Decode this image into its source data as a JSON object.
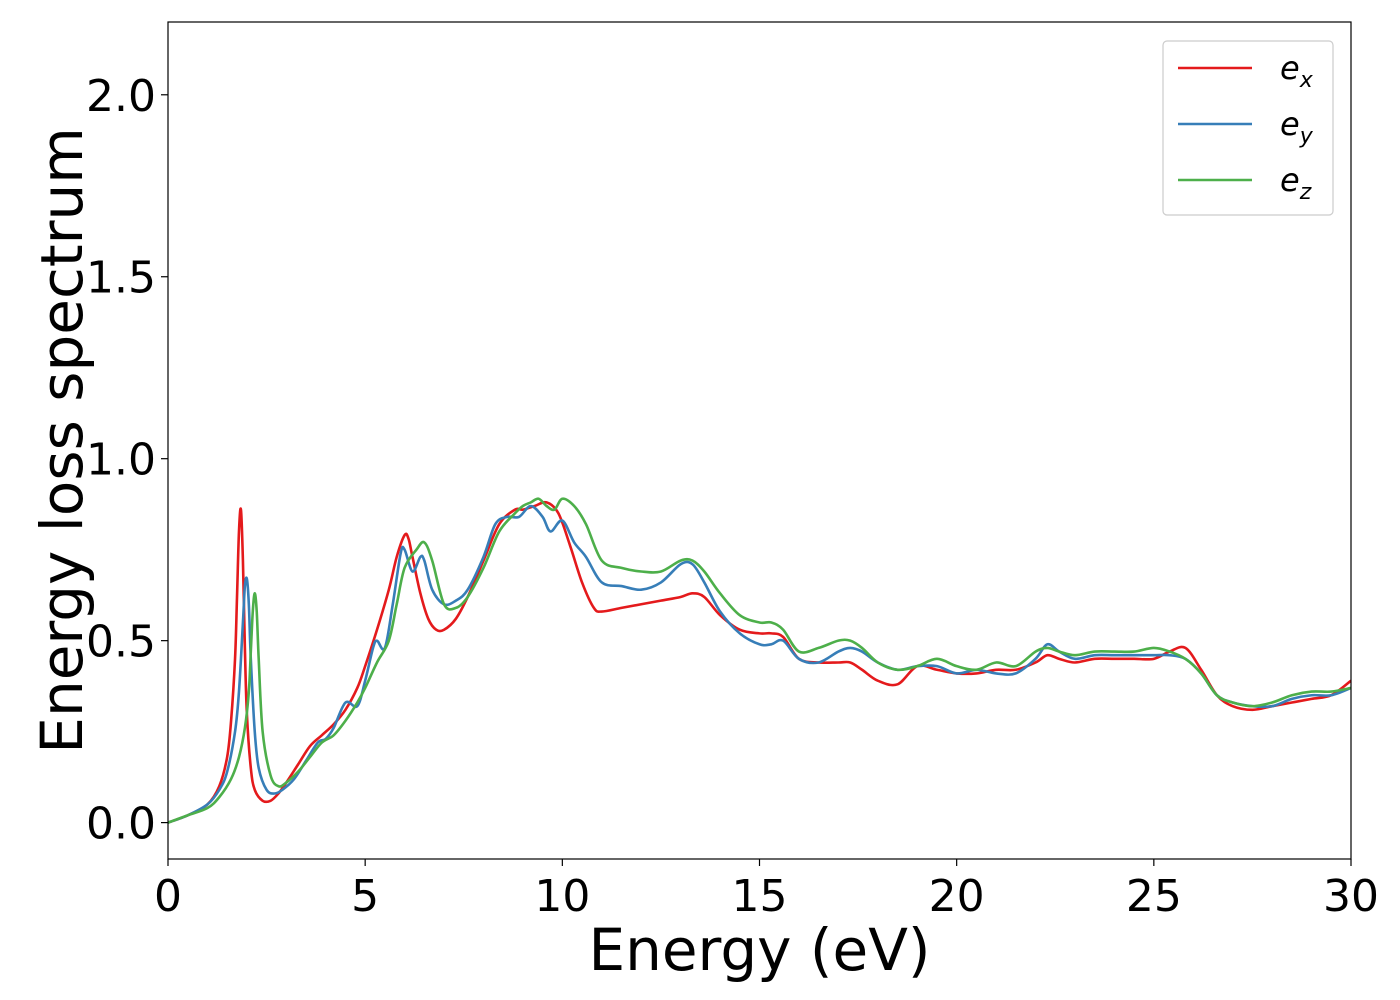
{
  "chart_data": {
    "type": "line",
    "xlabel": "Energy (eV)",
    "ylabel": "Energy loss spectrum",
    "xlim": [
      0,
      30
    ],
    "ylim": [
      -0.1,
      2.2
    ],
    "xticks": [
      0,
      5,
      10,
      15,
      20,
      25,
      30
    ],
    "xtick_labels": [
      "0",
      "5",
      "10",
      "15",
      "20",
      "25",
      "30"
    ],
    "yticks": [
      0.0,
      0.5,
      1.0,
      1.5,
      2.0
    ],
    "ytick_labels": [
      "0.0",
      "0.5",
      "1.0",
      "1.5",
      "2.0"
    ],
    "grid": false,
    "legend_position": "top-right",
    "series": [
      {
        "name": "e_x",
        "label_main": "e",
        "label_sub": "x",
        "color": "#e41a1c",
        "x": [
          0,
          0.5,
          1.0,
          1.3,
          1.5,
          1.6,
          1.7,
          1.75,
          1.8,
          1.85,
          1.9,
          1.95,
          2.0,
          2.1,
          2.2,
          2.4,
          2.6,
          2.8,
          3.0,
          3.3,
          3.6,
          3.9,
          4.2,
          4.5,
          4.8,
          5.0,
          5.3,
          5.6,
          5.8,
          6.0,
          6.1,
          6.2,
          6.4,
          6.6,
          6.8,
          7.0,
          7.3,
          7.6,
          8.0,
          8.4,
          8.8,
          9.0,
          9.3,
          9.6,
          9.9,
          10.2,
          10.5,
          10.8,
          11.0,
          11.5,
          12.0,
          12.5,
          13.0,
          13.3,
          13.6,
          14.0,
          14.5,
          15.0,
          15.3,
          15.6,
          16.0,
          16.5,
          17.0,
          17.3,
          17.6,
          18.0,
          18.5,
          19.0,
          19.5,
          20.0,
          20.5,
          21.0,
          21.5,
          22.0,
          22.3,
          22.6,
          23.0,
          23.5,
          24.0,
          24.5,
          25.0,
          25.4,
          25.8,
          26.2,
          26.6,
          27.0,
          27.5,
          28.0,
          28.5,
          29.0,
          29.5,
          30.0
        ],
        "y": [
          0.0,
          0.02,
          0.05,
          0.1,
          0.18,
          0.28,
          0.45,
          0.62,
          0.8,
          0.86,
          0.72,
          0.48,
          0.3,
          0.15,
          0.09,
          0.06,
          0.06,
          0.08,
          0.11,
          0.16,
          0.21,
          0.24,
          0.27,
          0.31,
          0.37,
          0.43,
          0.53,
          0.64,
          0.73,
          0.79,
          0.78,
          0.73,
          0.63,
          0.56,
          0.53,
          0.53,
          0.56,
          0.62,
          0.72,
          0.82,
          0.86,
          0.86,
          0.87,
          0.88,
          0.85,
          0.76,
          0.66,
          0.59,
          0.58,
          0.59,
          0.6,
          0.61,
          0.62,
          0.63,
          0.62,
          0.57,
          0.53,
          0.52,
          0.52,
          0.51,
          0.45,
          0.44,
          0.44,
          0.44,
          0.42,
          0.39,
          0.38,
          0.43,
          0.42,
          0.41,
          0.41,
          0.42,
          0.42,
          0.44,
          0.46,
          0.45,
          0.44,
          0.45,
          0.45,
          0.45,
          0.45,
          0.47,
          0.48,
          0.42,
          0.35,
          0.32,
          0.31,
          0.32,
          0.33,
          0.34,
          0.35,
          0.39
        ]
      },
      {
        "name": "e_y",
        "label_main": "e",
        "label_sub": "y",
        "color": "#377eb8",
        "x": [
          0,
          0.5,
          1.0,
          1.3,
          1.5,
          1.7,
          1.8,
          1.9,
          1.95,
          2.0,
          2.05,
          2.1,
          2.2,
          2.3,
          2.5,
          2.7,
          2.9,
          3.2,
          3.5,
          3.8,
          4.0,
          4.2,
          4.5,
          4.8,
          5.0,
          5.2,
          5.3,
          5.5,
          5.7,
          5.9,
          6.0,
          6.2,
          6.4,
          6.5,
          6.7,
          7.0,
          7.3,
          7.6,
          8.0,
          8.3,
          8.6,
          8.9,
          9.2,
          9.5,
          9.7,
          10.0,
          10.3,
          10.6,
          11.0,
          11.5,
          12.0,
          12.5,
          13.0,
          13.3,
          13.6,
          14.0,
          14.5,
          15.0,
          15.3,
          15.6,
          16.0,
          16.5,
          17.0,
          17.3,
          17.6,
          18.0,
          18.5,
          19.0,
          19.5,
          20.0,
          20.5,
          21.0,
          21.5,
          22.0,
          22.3,
          22.6,
          23.0,
          23.5,
          24.0,
          24.5,
          25.0,
          25.4,
          25.8,
          26.2,
          26.6,
          27.0,
          27.5,
          28.0,
          28.5,
          29.0,
          29.5,
          30.0
        ],
        "y": [
          0.0,
          0.02,
          0.05,
          0.09,
          0.14,
          0.25,
          0.36,
          0.55,
          0.65,
          0.67,
          0.6,
          0.45,
          0.25,
          0.15,
          0.09,
          0.08,
          0.09,
          0.12,
          0.17,
          0.22,
          0.23,
          0.26,
          0.33,
          0.32,
          0.39,
          0.48,
          0.5,
          0.48,
          0.6,
          0.74,
          0.75,
          0.69,
          0.73,
          0.72,
          0.64,
          0.6,
          0.61,
          0.64,
          0.73,
          0.82,
          0.84,
          0.84,
          0.87,
          0.84,
          0.8,
          0.83,
          0.77,
          0.73,
          0.66,
          0.65,
          0.64,
          0.66,
          0.71,
          0.71,
          0.66,
          0.58,
          0.52,
          0.49,
          0.49,
          0.5,
          0.45,
          0.44,
          0.47,
          0.48,
          0.47,
          0.44,
          0.42,
          0.43,
          0.43,
          0.41,
          0.42,
          0.41,
          0.41,
          0.45,
          0.49,
          0.47,
          0.45,
          0.46,
          0.46,
          0.46,
          0.46,
          0.46,
          0.45,
          0.41,
          0.35,
          0.33,
          0.32,
          0.32,
          0.34,
          0.35,
          0.35,
          0.37
        ]
      },
      {
        "name": "e_z",
        "label_main": "e",
        "label_sub": "z",
        "color": "#4daf4a",
        "x": [
          0,
          0.5,
          1.0,
          1.3,
          1.6,
          1.8,
          1.95,
          2.05,
          2.1,
          2.15,
          2.2,
          2.25,
          2.3,
          2.4,
          2.6,
          2.8,
          3.0,
          3.3,
          3.6,
          3.9,
          4.2,
          4.5,
          4.8,
          5.0,
          5.3,
          5.6,
          5.8,
          6.0,
          6.3,
          6.5,
          6.7,
          7.0,
          7.3,
          7.6,
          8.0,
          8.4,
          8.8,
          9.0,
          9.2,
          9.4,
          9.6,
          9.8,
          10.0,
          10.3,
          10.6,
          11.0,
          11.5,
          12.0,
          12.5,
          13.0,
          13.3,
          13.6,
          14.0,
          14.5,
          15.0,
          15.3,
          15.6,
          16.0,
          16.5,
          17.0,
          17.3,
          17.6,
          18.0,
          18.5,
          19.0,
          19.5,
          20.0,
          20.5,
          21.0,
          21.5,
          22.0,
          22.3,
          22.6,
          23.0,
          23.5,
          24.0,
          24.5,
          25.0,
          25.4,
          25.8,
          26.2,
          26.6,
          27.0,
          27.5,
          28.0,
          28.5,
          29.0,
          29.5,
          30.0
        ],
        "y": [
          0.0,
          0.02,
          0.04,
          0.07,
          0.12,
          0.18,
          0.26,
          0.36,
          0.47,
          0.58,
          0.63,
          0.58,
          0.45,
          0.25,
          0.13,
          0.1,
          0.11,
          0.14,
          0.18,
          0.22,
          0.24,
          0.28,
          0.33,
          0.37,
          0.44,
          0.5,
          0.6,
          0.7,
          0.75,
          0.77,
          0.72,
          0.6,
          0.59,
          0.62,
          0.7,
          0.8,
          0.85,
          0.87,
          0.88,
          0.89,
          0.87,
          0.86,
          0.89,
          0.87,
          0.82,
          0.72,
          0.7,
          0.69,
          0.69,
          0.72,
          0.72,
          0.69,
          0.63,
          0.57,
          0.55,
          0.55,
          0.53,
          0.47,
          0.48,
          0.5,
          0.5,
          0.48,
          0.44,
          0.42,
          0.43,
          0.45,
          0.43,
          0.42,
          0.44,
          0.43,
          0.47,
          0.48,
          0.47,
          0.46,
          0.47,
          0.47,
          0.47,
          0.48,
          0.47,
          0.45,
          0.41,
          0.35,
          0.33,
          0.32,
          0.33,
          0.35,
          0.36,
          0.36,
          0.37
        ]
      }
    ]
  }
}
